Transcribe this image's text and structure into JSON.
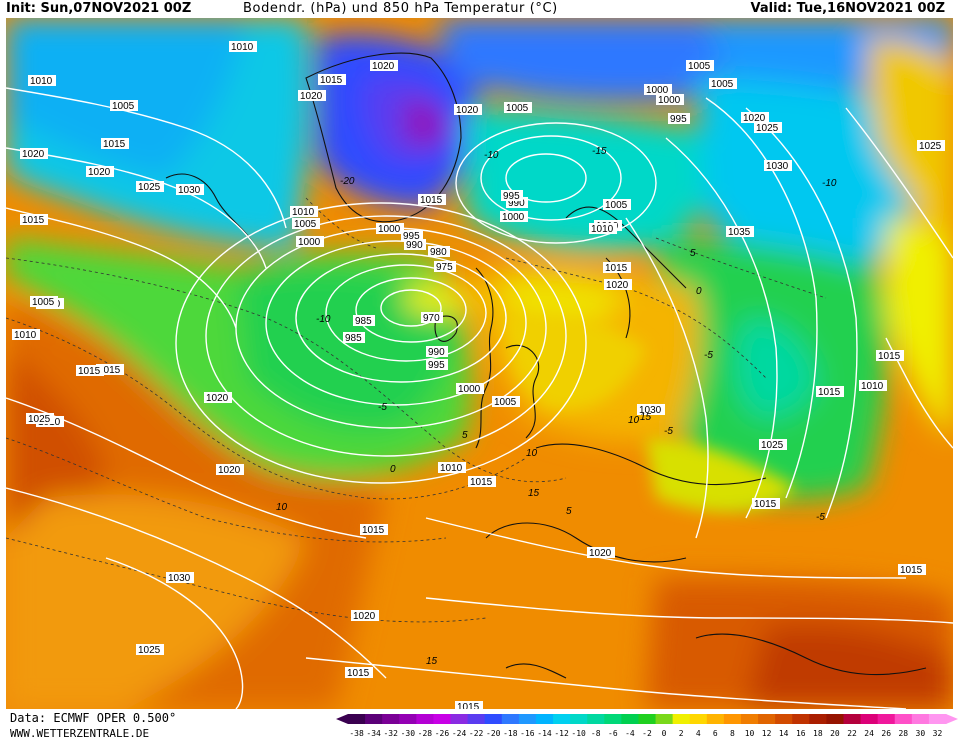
{
  "header": {
    "init": "Init: Sun,07NOV2021 00Z",
    "title": "Bodendr. (hPa) und 850 hPa Temperatur (°C)",
    "valid": "Valid: Tue,16NOV2021 00Z"
  },
  "footer": {
    "data_source": "Data: ECMWF OPER 0.500°",
    "website": "WWW.WETTERZENTRALE.DE"
  },
  "colors": {
    "frame": "#ffffff",
    "isobar": "#ffffff",
    "coast": "#111111",
    "t850_contour": "#333333"
  },
  "color_scale": {
    "unit": "°C",
    "ticks": [
      "-38",
      "-34",
      "-32",
      "-30",
      "-28",
      "-26",
      "-24",
      "-22",
      "-20",
      "-18",
      "-16",
      "-14",
      "-12",
      "-10",
      "-8",
      "-6",
      "-4",
      "-2",
      "0",
      "2",
      "4",
      "6",
      "8",
      "10",
      "12",
      "14",
      "16",
      "18",
      "20",
      "22",
      "24",
      "26",
      "28",
      "30",
      "32"
    ],
    "colors": [
      "#3a0050",
      "#5b0078",
      "#7a0096",
      "#9400b4",
      "#b400d4",
      "#c800e6",
      "#8a2be2",
      "#5a3cf0",
      "#2f4cff",
      "#2f78ff",
      "#1f98ff",
      "#00b4ff",
      "#00d0f0",
      "#00d8c8",
      "#00d8a0",
      "#00d878",
      "#00d050",
      "#20d020",
      "#7ad81a",
      "#f0f000",
      "#ffd700",
      "#ffb400",
      "#ff9600",
      "#f07d00",
      "#e06400",
      "#d24b00",
      "#c03200",
      "#aa1e00",
      "#961400",
      "#b4003c",
      "#dc0078",
      "#f0189c",
      "#ff50c8",
      "#ff78e0",
      "#ff96f0"
    ]
  },
  "map": {
    "isobar_labels": [
      "1010",
      "1010",
      "1005",
      "1015",
      "1020",
      "1020",
      "1025",
      "1030",
      "1015",
      "1020",
      "1020",
      "1020",
      "1015",
      "1010",
      "1005",
      "1000",
      "1015",
      "1020",
      "1015",
      "1010",
      "1005",
      "1000",
      "995",
      "990",
      "985",
      "980",
      "975",
      "970",
      "985",
      "990",
      "995",
      "1000",
      "1005",
      "1010",
      "1015",
      "1020",
      "1005",
      "1000",
      "995",
      "990",
      "995",
      "1000",
      "1005",
      "1010",
      "1000",
      "1005",
      "1020",
      "1025",
      "1030",
      "1035",
      "1025",
      "1015",
      "1010",
      "1030",
      "1015",
      "1010",
      "1025",
      "1020",
      "1015",
      "1005",
      "1010",
      "1015",
      "1025",
      "1020",
      "1030",
      "1025",
      "1020",
      "1015",
      "1015",
      "1020",
      "1020",
      "1015",
      "1015",
      "1015"
    ],
    "temperature_labels": [
      "-10",
      "-5",
      "0",
      "5",
      "10",
      "15",
      "-5",
      "-10",
      "-15",
      "-20",
      "-5",
      "5",
      "0",
      "10",
      "15",
      "-5",
      "-10",
      "5",
      "10",
      "15"
    ]
  }
}
